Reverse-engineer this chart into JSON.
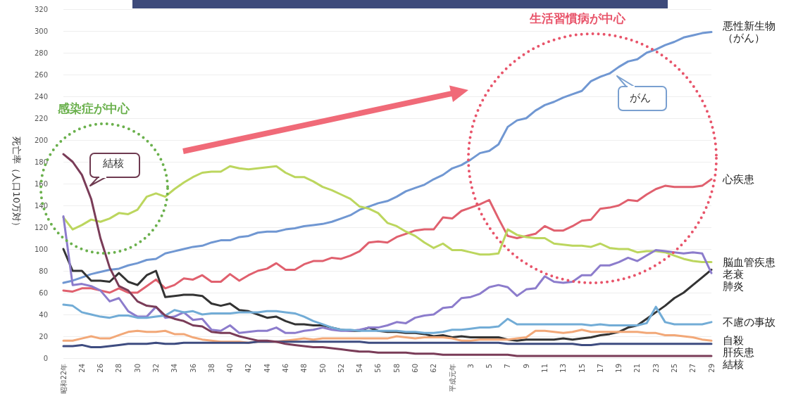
{
  "chart_data": {
    "type": "line",
    "ylabel": "死亡率（人口10万対）",
    "categories": [
      "昭和22年",
      null,
      "24",
      null,
      "26",
      null,
      "28",
      null,
      "30",
      null,
      "32",
      null,
      "34",
      null,
      "36",
      null,
      "38",
      null,
      "40",
      null,
      "42",
      null,
      "44",
      null,
      "46",
      null,
      "48",
      null,
      "50",
      null,
      "52",
      null,
      "54",
      null,
      "56",
      null,
      "58",
      null,
      "60",
      null,
      "62",
      null,
      "平成元年",
      null,
      "3",
      null,
      "5",
      null,
      "7",
      null,
      "9",
      null,
      "11",
      null,
      "13",
      null,
      "15",
      null,
      "17",
      null,
      "19",
      null,
      "21",
      null,
      "23",
      null,
      "25",
      null,
      "27",
      null,
      "29"
    ],
    "ylim": [
      0,
      320
    ],
    "yticks": [
      0,
      20,
      40,
      60,
      80,
      100,
      120,
      140,
      160,
      180,
      200,
      220,
      240,
      260,
      280,
      300,
      320
    ],
    "grid": "y",
    "marker": "none",
    "line_style": "solid",
    "series": [
      {
        "name": "悪性新生物（がん）",
        "color": "#7097d2",
        "values": [
          69,
          71,
          74,
          77,
          79,
          81,
          82,
          85,
          87,
          90,
          91,
          96,
          98,
          100,
          102,
          103,
          106,
          108,
          108,
          111,
          112,
          115,
          116,
          116,
          118,
          119,
          121,
          122,
          123,
          125,
          128,
          131,
          136,
          139,
          142,
          144,
          148,
          153,
          156,
          159,
          164,
          168,
          174,
          177,
          182,
          188,
          190,
          196,
          212,
          218,
          220,
          227,
          232,
          235,
          239,
          242,
          245,
          254,
          258,
          261,
          267,
          272,
          274,
          280,
          283,
          287,
          290,
          294,
          296,
          298,
          299
        ]
      },
      {
        "name": "心疾患",
        "color": "#e0606e",
        "values": [
          62,
          61,
          64,
          64,
          62,
          60,
          64,
          60,
          60,
          66,
          72,
          64,
          67,
          73,
          72,
          76,
          70,
          70,
          77,
          71,
          76,
          80,
          82,
          87,
          81,
          81,
          86,
          89,
          89,
          92,
          91,
          94,
          98,
          106,
          107,
          106,
          111,
          114,
          117,
          118,
          118,
          129,
          128,
          135,
          138,
          141,
          145,
          128,
          112,
          110,
          112,
          114,
          121,
          117,
          117,
          121,
          126,
          127,
          137,
          138,
          140,
          145,
          144,
          150,
          155,
          158,
          157,
          157,
          157,
          158,
          164
        ]
      },
      {
        "name": "脳血管疾患",
        "color": "#bcd65e",
        "values": [
          129,
          118,
          122,
          127,
          125,
          128,
          133,
          132,
          136,
          148,
          151,
          148,
          155,
          161,
          166,
          170,
          171,
          171,
          176,
          174,
          173,
          174,
          175,
          176,
          170,
          166,
          166,
          162,
          157,
          154,
          150,
          146,
          139,
          137,
          133,
          124,
          121,
          116,
          112,
          106,
          101,
          105,
          99,
          99,
          97,
          95,
          95,
          96,
          118,
          113,
          111,
          110,
          110,
          105,
          104,
          103,
          103,
          102,
          105,
          101,
          100,
          100,
          97,
          98,
          98,
          97,
          94,
          91,
          89,
          88,
          88
        ]
      },
      {
        "name": "老衰",
        "color": "#333333",
        "values": [
          100,
          80,
          80,
          71,
          71,
          70,
          78,
          70,
          67,
          76,
          80,
          56,
          57,
          58,
          58,
          57,
          50,
          48,
          50,
          44,
          43,
          40,
          37,
          38,
          34,
          31,
          31,
          30,
          30,
          28,
          26,
          25,
          25,
          28,
          25,
          24,
          24,
          23,
          23,
          22,
          20,
          21,
          19,
          20,
          19,
          19,
          19,
          19,
          17,
          16,
          17,
          17,
          17,
          17,
          18,
          17,
          18,
          19,
          21,
          22,
          24,
          28,
          30,
          36,
          42,
          48,
          55,
          60,
          67,
          74,
          81
        ]
      },
      {
        "name": "肺炎",
        "color": "#8c7ccc",
        "values": [
          130,
          67,
          68,
          66,
          62,
          52,
          55,
          43,
          38,
          38,
          47,
          37,
          38,
          42,
          35,
          36,
          26,
          25,
          30,
          23,
          24,
          25,
          25,
          28,
          23,
          23,
          25,
          26,
          28,
          26,
          25,
          25,
          26,
          28,
          28,
          30,
          33,
          32,
          37,
          39,
          40,
          46,
          47,
          55,
          56,
          59,
          65,
          67,
          65,
          57,
          63,
          64,
          75,
          70,
          69,
          70,
          76,
          76,
          85,
          85,
          88,
          92,
          89,
          94,
          99,
          98,
          97,
          96,
          97,
          96,
          78
        ]
      },
      {
        "name": "不慮の事故",
        "color": "#72acd6",
        "values": [
          49,
          48,
          42,
          40,
          38,
          37,
          39,
          39,
          37,
          37,
          38,
          39,
          44,
          42,
          43,
          40,
          41,
          41,
          41,
          42,
          42,
          42,
          43,
          43,
          42,
          41,
          38,
          34,
          31,
          28,
          26,
          26,
          25,
          25,
          25,
          25,
          25,
          24,
          24,
          23,
          23,
          24,
          26,
          26,
          27,
          28,
          28,
          29,
          36,
          31,
          31,
          31,
          31,
          31,
          31,
          31,
          31,
          30,
          31,
          30,
          30,
          30,
          30,
          32,
          47,
          33,
          31,
          31,
          31,
          31,
          33
        ]
      },
      {
        "name": "自殺",
        "color": "#f2a878",
        "values": [
          16,
          16,
          18,
          20,
          18,
          18,
          21,
          24,
          25,
          24,
          24,
          25,
          22,
          22,
          19,
          17,
          16,
          15,
          15,
          15,
          14,
          15,
          15,
          15,
          16,
          17,
          18,
          17,
          18,
          18,
          18,
          18,
          18,
          18,
          18,
          18,
          20,
          19,
          18,
          19,
          19,
          19,
          18,
          16,
          16,
          17,
          17,
          17,
          17,
          18,
          19,
          25,
          25,
          24,
          23,
          24,
          26,
          24,
          24,
          24,
          24,
          24,
          24,
          23,
          23,
          21,
          21,
          20,
          19,
          17,
          16
        ]
      },
      {
        "name": "肝疾患",
        "color": "#3e4c80",
        "values": [
          11,
          11,
          12,
          10,
          10,
          11,
          12,
          13,
          13,
          13,
          14,
          13,
          13,
          14,
          14,
          14,
          14,
          14,
          14,
          14,
          14,
          15,
          15,
          15,
          15,
          15,
          15,
          15,
          15,
          15,
          15,
          15,
          15,
          14,
          14,
          14,
          14,
          14,
          14,
          14,
          14,
          14,
          14,
          14,
          14,
          14,
          14,
          14,
          13,
          13,
          13,
          13,
          13,
          13,
          13,
          13,
          12,
          12,
          13,
          13,
          13,
          13,
          13,
          13,
          13,
          13,
          13,
          13,
          13,
          13,
          13
        ]
      },
      {
        "name": "結核",
        "color": "#7a3c58",
        "values": [
          187,
          180,
          168,
          146,
          110,
          83,
          66,
          62,
          52,
          48,
          47,
          39,
          36,
          34,
          30,
          29,
          24,
          23,
          23,
          20,
          18,
          16,
          16,
          15,
          13,
          12,
          11,
          10,
          10,
          9,
          8,
          7,
          6,
          6,
          5,
          5,
          5,
          5,
          4,
          4,
          4,
          3,
          3,
          3,
          3,
          3,
          3,
          3,
          3,
          2,
          2,
          2,
          2,
          2,
          2,
          2,
          2,
          2,
          2,
          2,
          2,
          2,
          2,
          2,
          2,
          2,
          2,
          2,
          2,
          2,
          2
        ]
      }
    ],
    "annotations": [
      "感染症が中心",
      "生活習慣病が中心",
      "結核",
      "がん"
    ]
  }
}
